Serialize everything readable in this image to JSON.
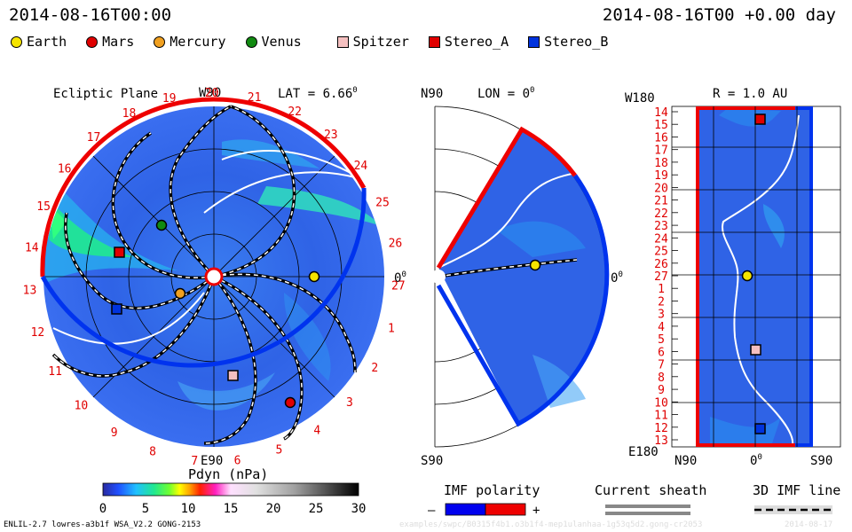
{
  "header": {
    "left_time": "2014-08-16T00:00",
    "right_time": "2014-08-16T00 +0.00 day"
  },
  "objects": [
    {
      "name": "Earth",
      "shape": "circle",
      "color": "#f5e400"
    },
    {
      "name": "Mars",
      "shape": "circle",
      "color": "#e00000"
    },
    {
      "name": "Mercury",
      "shape": "circle",
      "color": "#f0a020"
    },
    {
      "name": "Venus",
      "shape": "circle",
      "color": "#118a11"
    },
    {
      "name": "Spitzer",
      "shape": "square",
      "color": "#f5c0c0"
    },
    {
      "name": "Stereo_A",
      "shape": "square",
      "color": "#e00000"
    },
    {
      "name": "Stereo_B",
      "shape": "square",
      "color": "#0033dd"
    }
  ],
  "ecliptic": {
    "title": "Ecliptic Plane",
    "top_label": "W90",
    "bottom_label": "E90",
    "lat_label": "LAT = 6.66",
    "lat_sup": "0",
    "right_zero": "0",
    "right_zero_sup": "0",
    "carrington_ticks": [
      "19",
      "20",
      "21",
      "22",
      "23",
      "24",
      "25",
      "26",
      "27",
      "1",
      "2",
      "3",
      "4",
      "5",
      "6",
      "7",
      "8",
      "9",
      "10",
      "11",
      "12",
      "13",
      "14",
      "15",
      "16",
      "17",
      "18"
    ]
  },
  "meridional": {
    "top_label": "N90",
    "bottom_label": "S90",
    "lon_label": "LON = 0",
    "lon_sup": "0",
    "right_zero": "0",
    "right_zero_sup": "0"
  },
  "radial": {
    "top_left_label": "W180",
    "bottom_left_label": "E180",
    "r_label": "R = 1.0 AU",
    "bottom_labels": [
      "N90",
      "0",
      "S90"
    ],
    "bottom_zero_sup": "0",
    "carrington_ticks": [
      "14",
      "15",
      "16",
      "17",
      "18",
      "19",
      "20",
      "21",
      "22",
      "23",
      "24",
      "25",
      "26",
      "27",
      "1",
      "2",
      "3",
      "4",
      "5",
      "6",
      "7",
      "8",
      "9",
      "10",
      "11",
      "12",
      "13"
    ]
  },
  "colorbar": {
    "title": "Pdyn (nPa)",
    "ticks": [
      "0",
      "5",
      "10",
      "15",
      "20",
      "25",
      "30"
    ],
    "range": [
      0,
      30
    ]
  },
  "imf_polarity": {
    "title": "IMF polarity",
    "minus": "–",
    "plus": "+",
    "neg_color": "#0000ee",
    "pos_color": "#ee0000"
  },
  "current_sheath": {
    "title": "Current sheath"
  },
  "imf_line": {
    "title": "3D IMF line"
  },
  "footer": {
    "model": "ENLIL-2.7 lowres-a3b1f WSA_V2.2 GONG-2153",
    "path": "examples/swpc/B0315f4b1.o3b1f4-mep1ulanhaa-1g53q5d2.gong-cr2053",
    "date": "2014-08-17"
  }
}
